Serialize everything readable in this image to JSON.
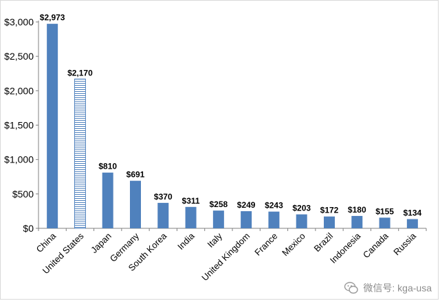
{
  "chart_data": {
    "type": "bar",
    "title": "",
    "xlabel": "",
    "ylabel": "",
    "ylim": [
      0,
      3000
    ],
    "yticks": [
      "$0",
      "$500",
      "$1,000",
      "$1,500",
      "$2,000",
      "$2,500",
      "$3,000"
    ],
    "grid": false,
    "categories": [
      "China",
      "United States",
      "Japan",
      "Germany",
      "South Korea",
      "India",
      "Italy",
      "United Kingdom",
      "France",
      "Mexico",
      "Brazil",
      "Indonesia",
      "Canada",
      "Russia"
    ],
    "values": [
      2973,
      2170,
      810,
      691,
      370,
      311,
      258,
      249,
      243,
      203,
      172,
      180,
      155,
      134
    ],
    "data_labels": [
      "$2,973",
      "$2,170",
      "$810",
      "$691",
      "$370",
      "$311",
      "$258",
      "$249",
      "$243",
      "$203",
      "$172",
      "$180",
      "$155",
      "$134"
    ],
    "colors": {
      "bar": "#4f81bd",
      "highlight_stripe": "#4f81bd",
      "axis": "#808080"
    },
    "highlight_category": "United States"
  },
  "watermark": {
    "text": "微信号: kga-usa",
    "icon": "wechat-icon"
  }
}
